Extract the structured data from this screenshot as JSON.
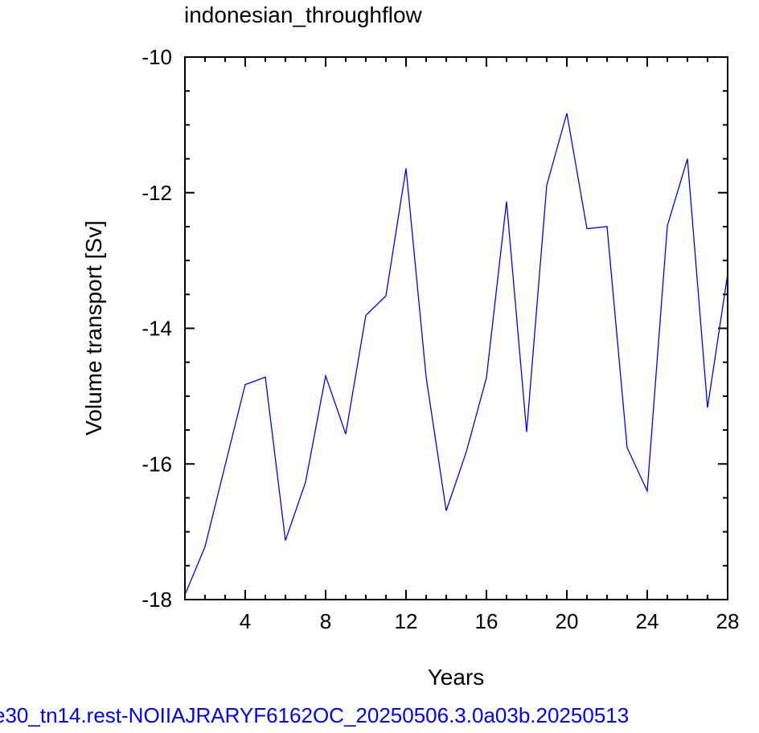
{
  "chart_data": {
    "type": "line",
    "title": "indonesian_throughflow",
    "xlabel": "Years",
    "ylabel": "Volume transport [Sv]",
    "xlim": [
      1,
      28
    ],
    "ylim": [
      -18,
      -10
    ],
    "x_ticks": [
      {
        "value": 4,
        "label": "4"
      },
      {
        "value": 8,
        "label": "8"
      },
      {
        "value": 12,
        "label": "12"
      },
      {
        "value": 16,
        "label": "16"
      },
      {
        "value": 20,
        "label": "20"
      },
      {
        "value": 24,
        "label": "24"
      },
      {
        "value": 28,
        "label": "28"
      }
    ],
    "x_minor_step": 1,
    "y_ticks": [
      {
        "value": -10,
        "label": "-10"
      },
      {
        "value": -12,
        "label": "-12"
      },
      {
        "value": -14,
        "label": "-14"
      },
      {
        "value": -16,
        "label": "-16"
      },
      {
        "value": -18,
        "label": "-18"
      }
    ],
    "y_minor_step": 0.5,
    "grid": false,
    "series": [
      {
        "color": "#0000ff",
        "x": [
          1,
          2,
          3,
          4,
          5,
          6,
          7,
          8,
          9,
          10,
          11,
          12,
          13,
          14,
          15,
          16,
          17,
          18,
          19,
          20,
          21,
          22,
          23,
          24,
          25,
          26,
          27,
          28
        ],
        "y": [
          -17.93,
          -17.22,
          -16.02,
          -14.83,
          -14.72,
          -17.13,
          -16.27,
          -14.7,
          -15.56,
          -13.81,
          -13.52,
          -11.64,
          -14.72,
          -16.69,
          -15.82,
          -14.73,
          -12.13,
          -15.53,
          -11.89,
          -10.83,
          -12.53,
          -12.5,
          -15.76,
          -16.4,
          -12.49,
          -11.5,
          -15.17,
          -13.2
        ]
      }
    ]
  },
  "caption": {
    "text": "e30_tn14.rest-NOIIAJRARYF6162OC_20250506.3.0a03b.20250513",
    "color": "#0000ff"
  }
}
